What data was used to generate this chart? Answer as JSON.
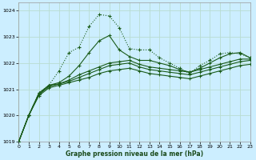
{
  "xlabel": "Graphe pression niveau de la mer (hPa)",
  "bg_color": "#cceeff",
  "grid_color": "#b8ddd0",
  "line_color": "#1a5c1a",
  "ylim": [
    1019.0,
    1024.3
  ],
  "xlim": [
    0,
    23
  ],
  "yticks": [
    1019,
    1020,
    1021,
    1022,
    1023,
    1024
  ],
  "xticks": [
    0,
    1,
    2,
    3,
    4,
    5,
    6,
    7,
    8,
    9,
    10,
    11,
    12,
    13,
    14,
    15,
    16,
    17,
    18,
    19,
    20,
    21,
    22,
    23
  ],
  "hours": [
    0,
    1,
    2,
    3,
    4,
    5,
    6,
    7,
    8,
    9,
    10,
    11,
    12,
    13,
    14,
    15,
    16,
    17,
    18,
    19,
    20,
    21,
    22,
    23
  ],
  "line_dotted": [
    1019.0,
    1020.0,
    1020.85,
    1021.15,
    1021.7,
    1022.4,
    1022.6,
    1023.4,
    1023.85,
    1023.8,
    1023.35,
    1022.55,
    1022.5,
    1022.5,
    1022.2,
    1022.0,
    1021.8,
    1021.6,
    1021.9,
    1022.1,
    1022.35,
    1022.4,
    1022.35,
    1022.2
  ],
  "line_high": [
    1019.0,
    1020.0,
    1020.85,
    1021.15,
    1021.25,
    1021.5,
    1021.9,
    1022.4,
    1022.85,
    1023.05,
    1022.5,
    1022.25,
    1022.1,
    1022.1,
    1022.0,
    1021.9,
    1021.75,
    1021.65,
    1021.8,
    1022.0,
    1022.2,
    1022.35,
    1022.4,
    1022.2
  ],
  "line_mid1": [
    1019.0,
    1020.0,
    1020.8,
    1021.15,
    1021.2,
    1021.35,
    1021.55,
    1021.7,
    1021.85,
    1022.0,
    1022.05,
    1022.1,
    1021.95,
    1021.85,
    1021.8,
    1021.75,
    1021.7,
    1021.65,
    1021.75,
    1021.85,
    1021.95,
    1022.05,
    1022.15,
    1022.15
  ],
  "line_mid2": [
    1019.0,
    1020.0,
    1020.8,
    1021.1,
    1021.2,
    1021.3,
    1021.45,
    1021.6,
    1021.75,
    1021.9,
    1021.95,
    1022.0,
    1021.85,
    1021.75,
    1021.7,
    1021.65,
    1021.6,
    1021.55,
    1021.65,
    1021.75,
    1021.85,
    1021.95,
    1022.05,
    1022.1
  ],
  "line_low": [
    1019.0,
    1020.0,
    1020.75,
    1021.05,
    1021.15,
    1021.25,
    1021.35,
    1021.45,
    1021.6,
    1021.7,
    1021.75,
    1021.8,
    1021.7,
    1021.6,
    1021.55,
    1021.5,
    1021.45,
    1021.4,
    1021.5,
    1021.6,
    1021.7,
    1021.8,
    1021.9,
    1021.95
  ]
}
